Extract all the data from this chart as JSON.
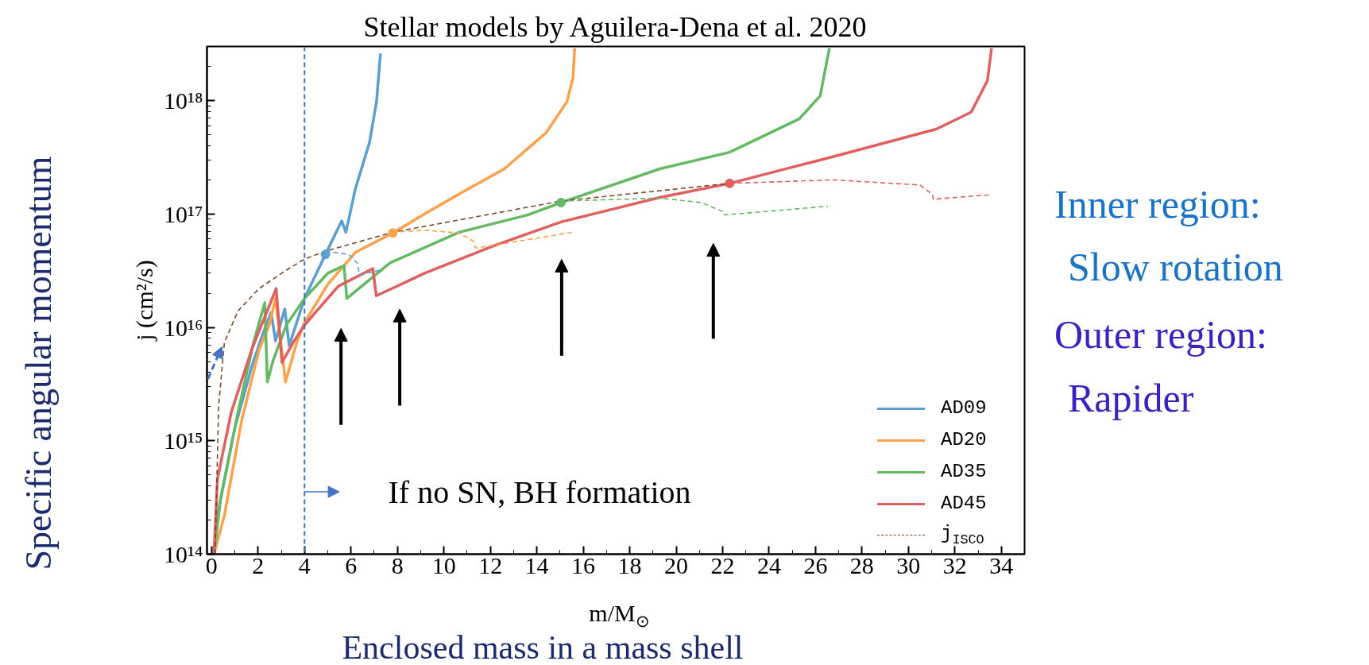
{
  "chart_data": {
    "type": "line",
    "title": "Stellar models by Aguilera-Dena et al. 2020",
    "xlabel": "m/M$_{⊙}$",
    "ylabel": "j (cm²/s)",
    "log": "y",
    "xlim": [
      -0.2,
      35
    ],
    "ylim": [
      100000000000000.0,
      3e+18
    ],
    "xticks": [
      0,
      2,
      4,
      6,
      8,
      10,
      12,
      14,
      16,
      18,
      20,
      22,
      24,
      26,
      28,
      30,
      32,
      34
    ],
    "yticks": [
      {
        "value": 100000000000000.0,
        "label": "10¹⁴"
      },
      {
        "value": 1000000000000000.0,
        "label": "10¹⁵"
      },
      {
        "value": 1e+16,
        "label": "10¹⁶"
      },
      {
        "value": 1e+17,
        "label": "10¹⁷"
      },
      {
        "value": 1e+18,
        "label": "10¹⁸"
      }
    ],
    "grid": false,
    "legend": "bottom right",
    "series": [
      {
        "name": "AD09",
        "color": "#5a9fd0",
        "line_style": "solid",
        "x": [
          0.1,
          0.25,
          1.0,
          1.74,
          2.18,
          2.56,
          2.75,
          3.15,
          3.34,
          4.0,
          4.9,
          5.6,
          5.78,
          6.2,
          6.8,
          7.1,
          7.27
        ],
        "values": [
          100000000000000.0,
          220000000000000.0,
          1300000000000000.0,
          4600000000000000.0,
          8500000000000000.0,
          1.35e+16,
          7600000000000000.0,
          1.45e+16,
          6900000000000000.0,
          1.8e+16,
          4.4e+16,
          8.7e+16,
          6.9e+16,
          1.7e+17,
          4.3e+17,
          9.8e+17,
          2.6e+18
        ]
      },
      {
        "name": "AD20",
        "color": "#ffa04a",
        "line_style": "solid",
        "x": [
          0.1,
          0.55,
          1.29,
          2.04,
          2.48,
          2.75,
          3.18,
          3.67,
          4.0,
          5.0,
          6.2,
          7.8,
          9.17,
          10.65,
          12.6,
          14.4,
          15.3,
          15.56,
          15.63
        ],
        "values": [
          100000000000000.0,
          220000000000000.0,
          1500000000000000.0,
          6300000000000000.0,
          1.05e+16,
          1.8e+16,
          3300000000000000.0,
          7400000000000000.0,
          1.1e+16,
          2.4e+16,
          4.6e+16,
          6.8e+16,
          1e+17,
          1.5e+17,
          2.5e+17,
          5.2e+17,
          9.8e+17,
          1.6e+18,
          2.9e+18
        ]
      },
      {
        "name": "AD35",
        "color": "#64b964",
        "line_style": "solid",
        "x": [
          0.1,
          0.4,
          1.14,
          1.81,
          2.29,
          2.4,
          2.66,
          3.22,
          4.0,
          5.0,
          5.7,
          5.82,
          7.68,
          10.65,
          13.6,
          15.04,
          19.3,
          22.3,
          25.3,
          26.2,
          26.5,
          26.6
        ],
        "values": [
          100000000000000.0,
          320000000000000.0,
          1800000000000000.0,
          7400000000000000.0,
          1.65e+16,
          3300000000000000.0,
          5200000000000000.0,
          1.05e+16,
          1.8e+16,
          3e+16,
          3.5e+16,
          1.8e+16,
          3.7e+16,
          6.9e+16,
          9.8e+16,
          1.26e+17,
          2.5e+17,
          3.5e+17,
          6.9e+17,
          1.1e+18,
          2.3e+18,
          2.9e+18
        ]
      },
      {
        "name": "AD45",
        "color": "#e06060",
        "line_style": "solid",
        "x": [
          0.1,
          0.25,
          0.85,
          1.74,
          2.33,
          2.78,
          3.03,
          3.52,
          4.0,
          5.45,
          6.94,
          7.09,
          9.17,
          12.1,
          15.04,
          19.3,
          22.3,
          26.75,
          31.2,
          32.7,
          33.4,
          33.58
        ],
        "values": [
          100000000000000.0,
          460000000000000.0,
          1800000000000000.0,
          6500000000000000.0,
          1.3e+16,
          2.2e+16,
          4900000000000000.0,
          7400000000000000.0,
          1.05e+16,
          2.3e+16,
          3.3e+16,
          1.9e+16,
          3e+16,
          5.2e+16,
          8.5e+16,
          1.4e+17,
          1.86e+17,
          3.2e+17,
          5.6e+17,
          7.9e+17,
          1.5e+18,
          2.9e+18
        ]
      },
      {
        "name": "j$_{ISCO}$",
        "color": "#7a4a2a",
        "line_style": "dashed",
        "x": [
          0.15,
          0.3,
          0.55,
          1.14,
          2.04,
          3.22,
          4.0,
          4.9,
          7.8,
          15.04,
          22.3
        ],
        "values": [
          100000000000000.0,
          2000000000000000.0,
          7400000000000000.0,
          1.4e+16,
          2.2e+16,
          3.2e+16,
          4e+16,
          4.7e+16,
          6.9e+16,
          1.3e+17,
          1.86e+17
        ]
      },
      {
        "color": "#5a9fd0",
        "line_style": "dashed",
        "x": [
          4.9,
          5.9,
          6.27,
          6.37,
          7.24
        ],
        "values": [
          4.7e+16,
          4.4e+16,
          3.7e+16,
          2.9e+16,
          3.2e+16
        ]
      },
      {
        "color": "#ffa04a",
        "line_style": "dashed",
        "x": [
          7.8,
          9.17,
          10.65,
          11.25,
          11.37,
          15.56
        ],
        "values": [
          6.9e+16,
          7.2e+16,
          6.8e+16,
          5.8e+16,
          5e+16,
          6.9e+16
        ]
      },
      {
        "color": "#64b964",
        "line_style": "dashed",
        "x": [
          15.04,
          19.3,
          21.1,
          22.0,
          22.07,
          26.53
        ],
        "values": [
          1.3e+17,
          1.38e+17,
          1.26e+17,
          1.05e+17,
          9.8e+16,
          1.17e+17
        ]
      },
      {
        "color": "#e06060",
        "line_style": "dashed",
        "x": [
          22.3,
          26.75,
          30.5,
          31.04,
          31.07,
          33.58
        ],
        "values": [
          1.86e+17,
          2e+17,
          1.8e+17,
          1.48e+17,
          1.35e+17,
          1.48e+17
        ]
      },
      {
        "type": "scatter",
        "color": "#5a9fd0",
        "marker": "circle",
        "x": [
          4.9
        ],
        "values": [
          4.4e+16
        ]
      },
      {
        "type": "scatter",
        "color": "#ffa04a",
        "marker": "circle",
        "x": [
          7.8
        ],
        "values": [
          6.8e+16
        ]
      },
      {
        "type": "scatter",
        "color": "#64b964",
        "marker": "circle",
        "x": [
          15.04
        ],
        "values": [
          1.26e+17
        ]
      },
      {
        "type": "scatter",
        "color": "#e06060",
        "marker": "circle",
        "x": [
          22.3
        ],
        "values": [
          1.86e+17
        ]
      }
    ],
    "ref_lines": [
      {
        "axis": "x",
        "value": 4,
        "color": "#4472c4",
        "line_style": "dashed"
      }
    ],
    "annotations": [
      "If no SN, BH formation",
      "Inner region:",
      "Slow rotation",
      "Outer region:",
      "Rapider",
      "Specific angular momentum",
      "Enclosed mass in a mass shell"
    ]
  }
}
